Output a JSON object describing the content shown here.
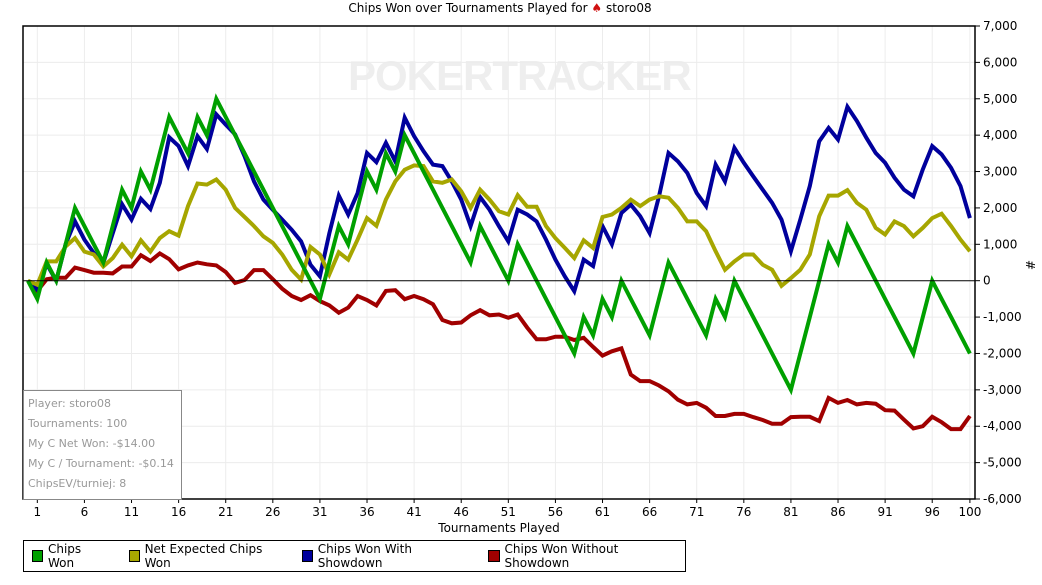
{
  "title": "Chips Won over Tournaments Played for",
  "player_name": "storo08",
  "watermark": "POKERTRACKER",
  "info_box": [
    "Player: storo08",
    "Tournaments: 100",
    "My C Net Won: -$14.00",
    "My C / Tournament: -$0.14",
    "ChipsEV/turniej: 8"
  ],
  "chart_data": {
    "type": "line",
    "title": "Chips Won over Tournaments Played for storo08",
    "xlabel": "Tournaments Played",
    "ylabel": "#",
    "xlim": [
      0,
      100
    ],
    "ylim": [
      -6000,
      7000
    ],
    "grid": true,
    "legend_position": "bottom",
    "x_ticks": [
      "1",
      "6",
      "11",
      "16",
      "21",
      "26",
      "31",
      "36",
      "41",
      "46",
      "51",
      "56",
      "61",
      "66",
      "71",
      "76",
      "81",
      "86",
      "91",
      "96",
      "100"
    ],
    "x_tick_values": [
      1,
      6,
      11,
      16,
      21,
      26,
      31,
      36,
      41,
      46,
      51,
      56,
      61,
      66,
      71,
      76,
      81,
      86,
      91,
      96,
      100
    ],
    "y_ticks": [
      "7,000",
      "6,000",
      "5,000",
      "4,000",
      "3,000",
      "2,000",
      "1,000",
      "0",
      "-1,000",
      "-2,000",
      "-3,000",
      "-4,000",
      "-5,000",
      "-6,000"
    ],
    "y_tick_values": [
      7000,
      6000,
      5000,
      4000,
      3000,
      2000,
      1000,
      0,
      -1000,
      -2000,
      -3000,
      -4000,
      -5000,
      -6000
    ],
    "series": [
      {
        "name": "Chips Won",
        "color": "#00a000",
        "values": [
          0,
          -500,
          500,
          0,
          1000,
          2000,
          1500,
          1000,
          500,
          1500,
          2500,
          2000,
          3000,
          2500,
          3500,
          4500,
          4000,
          3500,
          4500,
          4000,
          5000,
          4500,
          4000,
          3500,
          3000,
          2500,
          2000,
          1500,
          1000,
          500,
          0,
          -500,
          500,
          1500,
          1000,
          2000,
          3000,
          2500,
          3500,
          3000,
          4000,
          3500,
          3000,
          2500,
          2000,
          1500,
          1000,
          500,
          1500,
          1000,
          500,
          0,
          1000,
          500,
          0,
          -500,
          -1000,
          -1500,
          -2000,
          -1000,
          -1500,
          -500,
          -1000,
          0,
          -500,
          -1000,
          -1500,
          -500,
          500,
          0,
          -500,
          -1000,
          -1500,
          -500,
          -1000,
          0,
          -500,
          -1000,
          -1500,
          -2000,
          -2500,
          -3000,
          -2000,
          -1000,
          0,
          1000,
          500,
          1500,
          1000,
          500,
          0,
          -500,
          -1000,
          -1500,
          -2000,
          -1000,
          0,
          -500,
          -1000,
          -1500,
          -2000
        ]
      },
      {
        "name": "Net Expected Chips Won",
        "color": "#a6a600",
        "values": [
          0,
          -110,
          530,
          530,
          940,
          1170,
          800,
          720,
          390,
          620,
          990,
          670,
          1110,
          800,
          1170,
          1360,
          1240,
          2050,
          2670,
          2640,
          2780,
          2500,
          2000,
          1750,
          1500,
          1220,
          1040,
          720,
          300,
          30,
          930,
          720,
          170,
          780,
          580,
          1130,
          1720,
          1510,
          2230,
          2730,
          3050,
          3170,
          3150,
          2730,
          2690,
          2780,
          2460,
          2000,
          2500,
          2230,
          1910,
          1820,
          2350,
          2030,
          2030,
          1500,
          1170,
          900,
          620,
          1110,
          900,
          1750,
          1820,
          2000,
          2230,
          2050,
          2230,
          2320,
          2280,
          2000,
          1630,
          1630,
          1360,
          810,
          300,
          530,
          720,
          720,
          440,
          300,
          -140,
          70,
          300,
          720,
          1770,
          2340,
          2340,
          2490,
          2140,
          1950,
          1450,
          1270,
          1630,
          1500,
          1220,
          1450,
          1720,
          1840,
          1500,
          1130,
          810
        ]
      },
      {
        "name": "Chips Won With Showdown",
        "color": "#00009c",
        "values": [
          0,
          -250,
          460,
          0,
          1000,
          1630,
          1130,
          760,
          490,
          1300,
          2100,
          1680,
          2250,
          1970,
          2690,
          3940,
          3700,
          3150,
          3970,
          3620,
          4570,
          4290,
          4020,
          3420,
          2730,
          2230,
          1950,
          1680,
          1400,
          1080,
          440,
          120,
          1300,
          2340,
          1820,
          2410,
          3510,
          3260,
          3790,
          3280,
          4480,
          3970,
          3560,
          3190,
          3150,
          2730,
          2230,
          1500,
          2300,
          1950,
          1500,
          1080,
          1950,
          1820,
          1630,
          1130,
          580,
          120,
          -290,
          580,
          400,
          1500,
          1000,
          1860,
          2090,
          1770,
          1310,
          2320,
          3510,
          3280,
          2960,
          2410,
          2050,
          3190,
          2730,
          3650,
          3240,
          2870,
          2500,
          2140,
          1680,
          810,
          1680,
          2600,
          3830,
          4200,
          3880,
          4780,
          4390,
          3930,
          3510,
          3240,
          2830,
          2500,
          2320,
          3060,
          3700,
          3470,
          3100,
          2600,
          1720
        ]
      },
      {
        "name": "Chips Won Without Showdown",
        "color": "#a00000",
        "values": [
          0,
          -280,
          40,
          80,
          80,
          360,
          290,
          220,
          220,
          200,
          390,
          390,
          700,
          540,
          750,
          590,
          310,
          420,
          500,
          450,
          420,
          240,
          -60,
          20,
          290,
          290,
          40,
          -220,
          -420,
          -530,
          -400,
          -560,
          -680,
          -880,
          -740,
          -420,
          -530,
          -680,
          -280,
          -260,
          -510,
          -420,
          -510,
          -650,
          -1080,
          -1170,
          -1150,
          -950,
          -810,
          -950,
          -930,
          -1020,
          -930,
          -1290,
          -1610,
          -1610,
          -1540,
          -1540,
          -1630,
          -1570,
          -1820,
          -2060,
          -1940,
          -1860,
          -2580,
          -2760,
          -2760,
          -2880,
          -3040,
          -3270,
          -3400,
          -3360,
          -3490,
          -3720,
          -3720,
          -3660,
          -3660,
          -3750,
          -3830,
          -3930,
          -3930,
          -3750,
          -3740,
          -3740,
          -3860,
          -3220,
          -3360,
          -3280,
          -3400,
          -3360,
          -3380,
          -3560,
          -3570,
          -3820,
          -4060,
          -4000,
          -3740,
          -3890,
          -4080,
          -4080,
          -3720
        ]
      }
    ]
  }
}
